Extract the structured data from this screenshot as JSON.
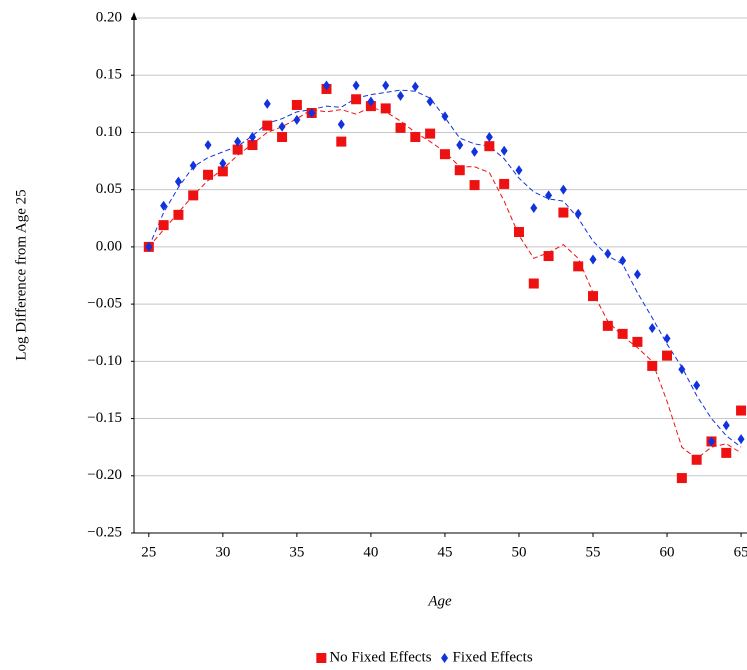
{
  "chart_data": {
    "type": "scatter",
    "y_label": "Log Difference from Age 25",
    "x_label": "Age",
    "x": [
      25,
      26,
      27,
      28,
      29,
      30,
      31,
      32,
      33,
      34,
      35,
      36,
      37,
      38,
      39,
      40,
      41,
      42,
      43,
      44,
      45,
      46,
      47,
      48,
      49,
      50,
      51,
      52,
      53,
      54,
      55,
      56,
      57,
      58,
      59,
      60,
      61,
      62,
      63,
      64,
      65
    ],
    "series": [
      {
        "name": "No Fixed Effects",
        "color": "#ee1111",
        "marker": "square",
        "values": [
          0.0,
          0.019,
          0.028,
          0.045,
          0.063,
          0.066,
          0.085,
          0.089,
          0.106,
          0.096,
          0.124,
          0.117,
          0.138,
          0.092,
          0.129,
          0.123,
          0.121,
          0.104,
          0.096,
          0.099,
          0.081,
          0.067,
          0.054,
          0.088,
          0.055,
          0.013,
          -0.032,
          -0.008,
          0.03,
          -0.017,
          -0.043,
          -0.069,
          -0.076,
          -0.083,
          -0.104,
          -0.095,
          -0.202,
          -0.186,
          -0.17,
          -0.18,
          -0.143
        ],
        "trend": [
          0,
          0.015,
          0.03,
          0.045,
          0.058,
          0.068,
          0.08,
          0.09,
          0.1,
          0.105,
          0.112,
          0.12,
          0.118,
          0.12,
          0.116,
          0.122,
          0.118,
          0.11,
          0.1,
          0.092,
          0.083,
          0.07,
          0.07,
          0.065,
          0.04,
          0.01,
          -0.01,
          -0.005,
          0.002,
          -0.01,
          -0.04,
          -0.065,
          -0.078,
          -0.088,
          -0.1,
          -0.135,
          -0.175,
          -0.185,
          -0.175,
          -0.172,
          -0.18
        ]
      },
      {
        "name": "Fixed Effects",
        "color": "#1133dd",
        "marker": "diamond",
        "values": [
          0.0,
          0.036,
          0.057,
          0.071,
          0.089,
          0.073,
          0.092,
          0.096,
          0.125,
          0.105,
          0.111,
          0.117,
          0.141,
          0.107,
          0.141,
          0.127,
          0.141,
          0.132,
          0.14,
          0.127,
          0.114,
          0.089,
          0.083,
          0.096,
          0.084,
          0.067,
          0.034,
          0.045,
          0.05,
          0.029,
          -0.011,
          -0.006,
          -0.012,
          -0.024,
          -0.071,
          -0.08,
          -0.107,
          -0.121,
          -0.17,
          -0.156,
          -0.168
        ],
        "trend": [
          0,
          0.03,
          0.052,
          0.07,
          0.078,
          0.083,
          0.088,
          0.097,
          0.108,
          0.112,
          0.118,
          0.12,
          0.123,
          0.122,
          0.13,
          0.133,
          0.135,
          0.137,
          0.136,
          0.13,
          0.113,
          0.095,
          0.09,
          0.088,
          0.077,
          0.06,
          0.048,
          0.042,
          0.04,
          0.025,
          0.005,
          -0.008,
          -0.015,
          -0.04,
          -0.062,
          -0.085,
          -0.105,
          -0.13,
          -0.15,
          -0.165,
          -0.175
        ]
      }
    ],
    "xlim": [
      24,
      65.4
    ],
    "ylim": [
      -0.25,
      0.2
    ],
    "xticks": [
      25,
      30,
      35,
      40,
      45,
      50,
      55,
      60,
      65
    ],
    "yticks": [
      {
        "value": -0.25,
        "label": "−0.25"
      },
      {
        "value": -0.2,
        "label": "−0.20"
      },
      {
        "value": -0.15,
        "label": "−0.15"
      },
      {
        "value": -0.1,
        "label": "−0.10"
      },
      {
        "value": -0.05,
        "label": "−0.05"
      },
      {
        "value": 0,
        "label": "0.00"
      },
      {
        "value": 0.05,
        "label": "0.05"
      },
      {
        "value": 0.1,
        "label": "0.10"
      },
      {
        "value": 0.15,
        "label": "0.15"
      },
      {
        "value": 0.2,
        "label": "0.20"
      }
    ],
    "grid": true,
    "legend": "bottom"
  }
}
